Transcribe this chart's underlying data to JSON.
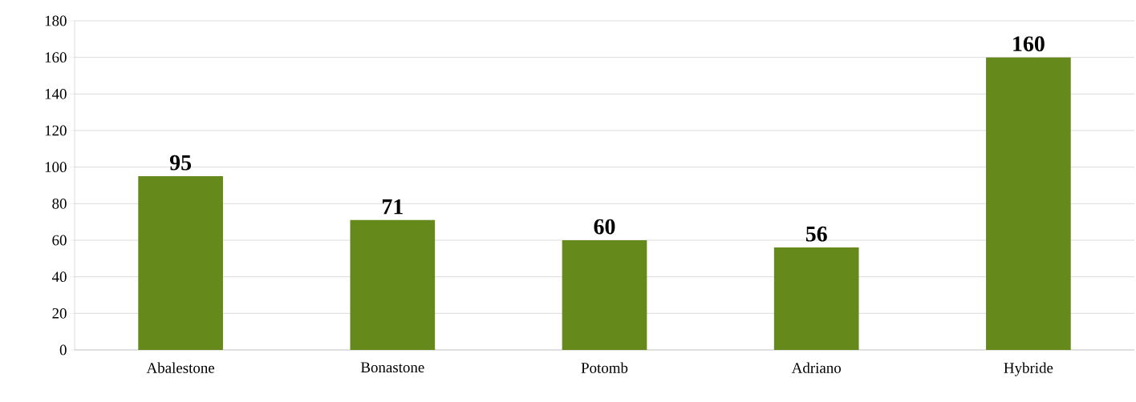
{
  "chart_data": {
    "type": "bar",
    "categories": [
      "Abalestone",
      "Bonastone",
      "Potomb",
      "Adriano",
      "Hybride"
    ],
    "values": [
      95,
      71,
      60,
      56,
      160
    ],
    "color": "#66891c",
    "ylim": [
      0,
      180
    ],
    "yticks": [
      0,
      20,
      40,
      60,
      80,
      100,
      120,
      140,
      160,
      180
    ],
    "grid": "y",
    "data_labels": true
  }
}
